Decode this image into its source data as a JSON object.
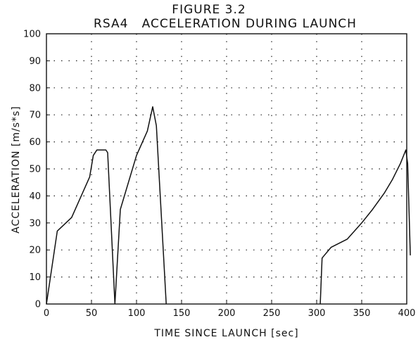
{
  "chart_data": {
    "type": "line",
    "figure_label": "FIGURE 3.2",
    "title": "RSA4   ACCELERATION DURING LAUNCH",
    "xlabel": "TIME SINCE LAUNCH [sec]",
    "ylabel": "ACCELERATION  [m/s*s]",
    "xlim": [
      0,
      400
    ],
    "ylim": [
      0,
      100
    ],
    "x_ticks": [
      0,
      50,
      100,
      150,
      200,
      250,
      300,
      350,
      400
    ],
    "y_ticks": [
      0,
      10,
      20,
      30,
      40,
      50,
      60,
      70,
      80,
      90,
      100
    ],
    "grid": true,
    "segments": [
      {
        "x": [
          0,
          12,
          28,
          48,
          52,
          56,
          60,
          66,
          68,
          76
        ],
        "y": [
          0,
          27,
          32,
          47,
          55,
          57,
          57,
          57,
          56,
          0
        ]
      },
      {
        "x": [
          76,
          82,
          100,
          112,
          118,
          122,
          133
        ],
        "y": [
          0,
          35,
          55,
          64,
          73,
          66,
          0
        ]
      },
      {
        "x": [
          304,
          306,
          316,
          334,
          350,
          362,
          375,
          384,
          393,
          399,
          401,
          404
        ],
        "y": [
          0,
          17,
          21,
          24,
          30,
          35,
          41,
          46,
          52,
          57,
          52,
          18
        ]
      }
    ]
  }
}
